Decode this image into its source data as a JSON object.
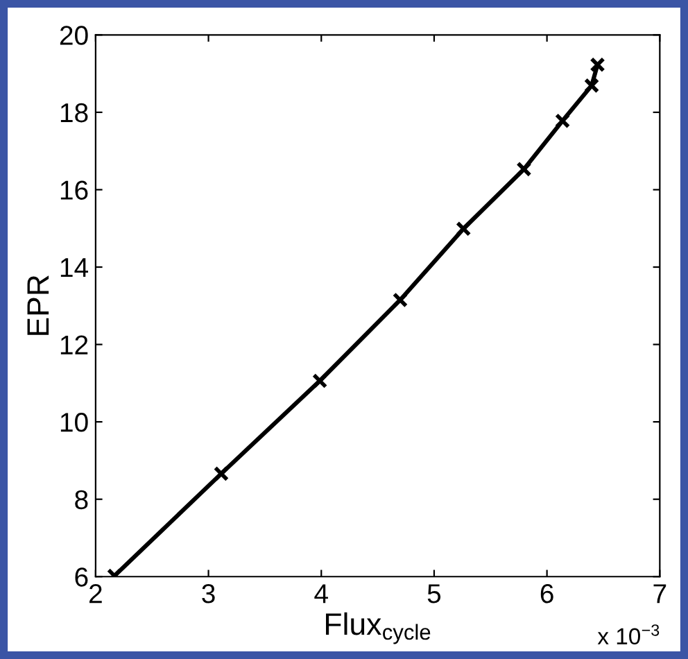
{
  "chart_data": {
    "type": "line",
    "xlabel": "Flux$_{cycle}$",
    "ylabel": "EPR",
    "x": [
      2.167,
      3.113,
      3.987,
      4.699,
      5.26,
      5.796,
      6.138,
      6.396,
      6.448
    ],
    "series": [
      {
        "color": "#000000",
        "values": [
          6.02,
          8.66,
          11.06,
          13.15,
          14.99,
          16.53,
          17.78,
          18.69,
          19.23
        ]
      }
    ],
    "marker": "cross",
    "line_style": "solid",
    "grid": false,
    "legend": false,
    "xlim": [
      2,
      7
    ],
    "ylim": [
      6,
      20
    ],
    "xticks": [
      2,
      3,
      4,
      5,
      6,
      7
    ],
    "yticks": [
      6,
      8,
      10,
      12,
      14,
      16,
      18,
      20
    ],
    "annotations": [
      "x 10$^{−3}$"
    ]
  }
}
